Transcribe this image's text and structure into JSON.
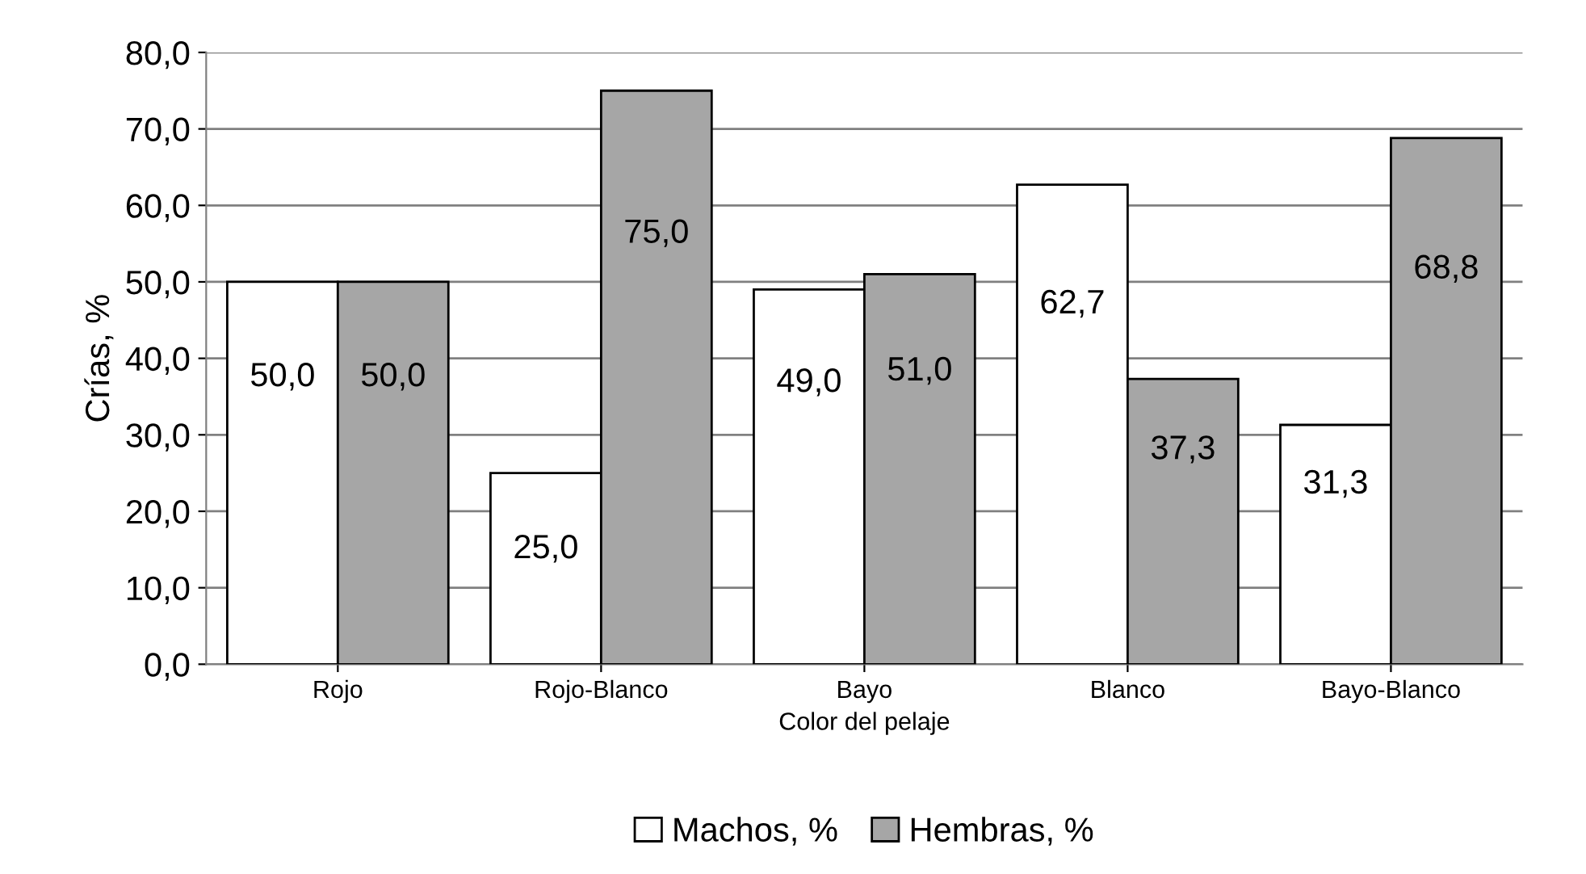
{
  "chart_data": {
    "type": "bar",
    "xlabel": "Color del pelaje",
    "ylabel": "Crías, %",
    "categories": [
      "Rojo",
      "Rojo-Blanco",
      "Bayo",
      "Blanco",
      "Bayo-Blanco"
    ],
    "series": [
      {
        "name": "Machos, %",
        "color": "#ffffff",
        "values": [
          50.0,
          25.0,
          49.0,
          62.7,
          31.3
        ],
        "value_labels": [
          "50,0",
          "25,0",
          "49,0",
          "62,7",
          "31,3"
        ]
      },
      {
        "name": "Hembras, %",
        "color": "#a6a6a6",
        "values": [
          50.0,
          75.0,
          51.0,
          37.3,
          68.8
        ],
        "value_labels": [
          "50,0",
          "75,0",
          "51,0",
          "37,3",
          "68,8"
        ]
      }
    ],
    "ylim": [
      0,
      80
    ],
    "yticks": [
      {
        "value": 0,
        "label": "0,0"
      },
      {
        "value": 10,
        "label": "10,0"
      },
      {
        "value": 20,
        "label": "20,0"
      },
      {
        "value": 30,
        "label": "30,0"
      },
      {
        "value": 40,
        "label": "40,0"
      },
      {
        "value": 50,
        "label": "50,0"
      },
      {
        "value": 60,
        "label": "60,0"
      },
      {
        "value": 70,
        "label": "70,0"
      },
      {
        "value": 80,
        "label": "80,0"
      }
    ],
    "grid": "y",
    "legend": "bottom"
  }
}
